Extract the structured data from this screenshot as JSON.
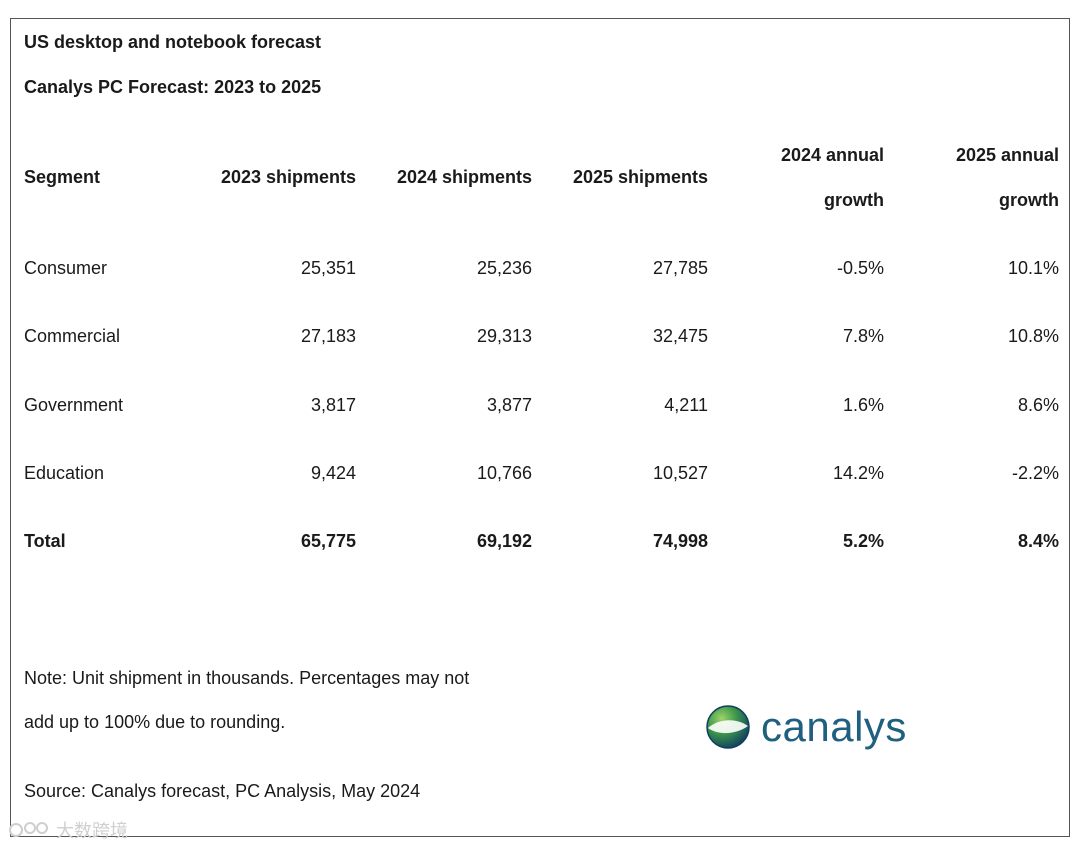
{
  "header": {
    "title": "US desktop and notebook forecast",
    "subtitle": "Canalys PC Forecast: 2023 to 2025"
  },
  "chart_data": {
    "type": "table",
    "title": "US desktop and notebook forecast",
    "subtitle": "Canalys PC Forecast: 2023 to 2025",
    "columns": [
      {
        "line1": "Segment",
        "line2": ""
      },
      {
        "line1": "2023 shipments",
        "line2": ""
      },
      {
        "line1": "2024 shipments",
        "line2": ""
      },
      {
        "line1": "2025 shipments",
        "line2": ""
      },
      {
        "line1": "2024 annual",
        "line2": "growth"
      },
      {
        "line1": "2025 annual",
        "line2": "growth"
      }
    ],
    "rows": [
      [
        "Consumer",
        "25,351",
        "25,236",
        "27,785",
        "-0.5%",
        "10.1%"
      ],
      [
        "Commercial",
        "27,183",
        "29,313",
        "32,475",
        "7.8%",
        "10.8%"
      ],
      [
        "Government",
        "3,817",
        "3,877",
        "4,211",
        "1.6%",
        "8.6%"
      ],
      [
        "Education",
        "9,424",
        "10,766",
        "10,527",
        "14.2%",
        "-2.2%"
      ]
    ],
    "total": [
      "Total",
      "65,775",
      "69,192",
      "74,998",
      "5.2%",
      "8.4%"
    ]
  },
  "footer": {
    "note_line1": "Note: Unit shipment in thousands. Percentages may not",
    "note_line2": "add up to 100% due to rounding.",
    "source": "Source: Canalys forecast, PC Analysis, May 2024"
  },
  "logo": {
    "text": "canalys",
    "icon": "globe-icon",
    "color": "#1f5f7f"
  },
  "watermark": {
    "text": "大数跨境",
    "icon": "watermark-logo-icon"
  }
}
